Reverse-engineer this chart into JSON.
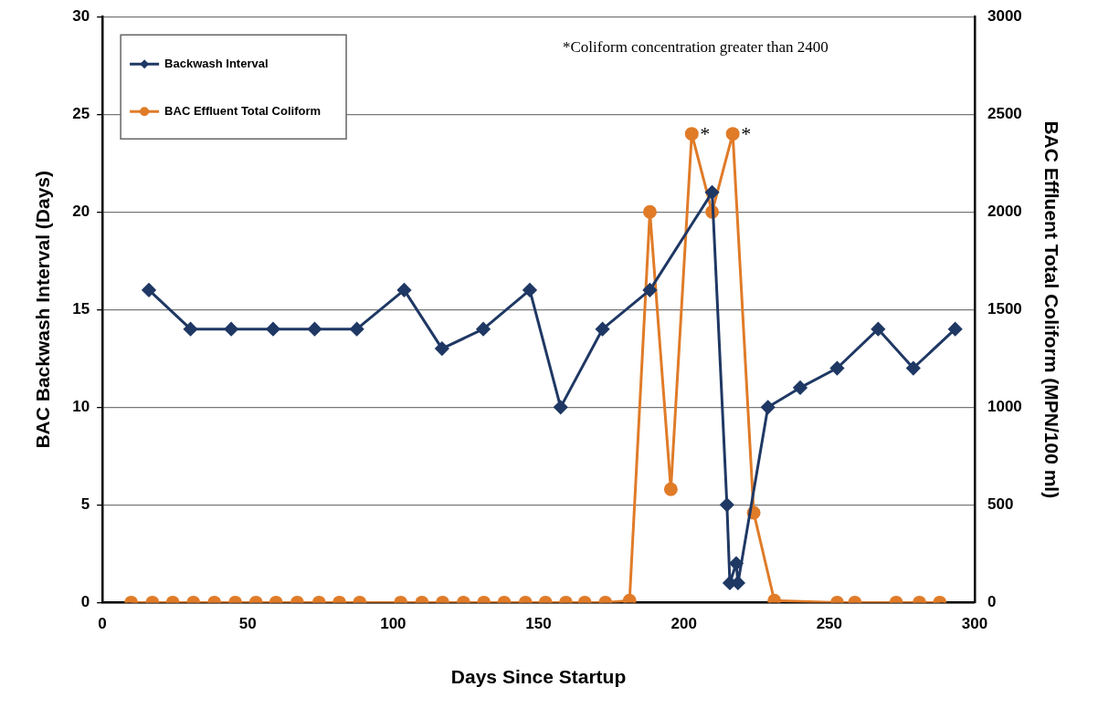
{
  "chart_data": {
    "type": "line",
    "xlabel": "Days Since Startup",
    "ylabel": "BAC Backwash Interval (Days)",
    "y2label": "BAC Effluent Total Coliform (MPN/100 ml)",
    "xlim": [
      0,
      300
    ],
    "xticks": [
      0,
      50,
      100,
      150,
      200,
      250,
      300
    ],
    "ylim": [
      0,
      30
    ],
    "yticks": [
      0,
      5,
      10,
      15,
      20,
      25,
      30
    ],
    "y2lim": [
      0,
      3000
    ],
    "y2ticks": [
      0,
      500,
      1000,
      1500,
      2000,
      2500,
      3000
    ],
    "grid": "y",
    "legend": "top left",
    "line_style": "solid",
    "annotations": [
      "*Coliform concentration greater than 2400",
      {
        "text": "*",
        "x": 202.7,
        "y": 24
      },
      {
        "text": "*",
        "x": 216.8,
        "y": 24
      }
    ],
    "series": [
      {
        "name": "Backwash Interval",
        "color": "#1f3864",
        "marker": "diamond",
        "x": [
          16,
          30.3,
          44.3,
          58.7,
          73,
          87.5,
          103.8,
          116.8,
          131,
          147,
          157.6,
          172,
          188.3,
          209.7,
          214.8,
          215.8,
          218,
          218.6,
          228.9,
          240,
          252.7,
          266.8,
          278.9,
          293.3
        ],
        "values": [
          16,
          14,
          14,
          14,
          14,
          14,
          16,
          13,
          14,
          16,
          10,
          14,
          16,
          21,
          5,
          1,
          2,
          1,
          10,
          11,
          12,
          14,
          12,
          14
        ]
      },
      {
        "name": "BAC Effluent Total Coliform",
        "color": "#e07b28",
        "marker": "circle",
        "axis": "y2",
        "x": [
          9.9,
          17.2,
          24.2,
          31.3,
          38.5,
          45.7,
          52.8,
          59.7,
          67,
          74.5,
          81.5,
          88.5,
          102.6,
          109.9,
          117,
          124.2,
          131.2,
          138.2,
          145.5,
          152.4,
          159.4,
          165.9,
          173,
          181.3,
          188.3,
          195.5,
          202.7,
          209.7,
          216.8,
          224,
          231.1,
          252.7,
          258.8,
          273,
          281,
          288
        ],
        "values": [
          0,
          0,
          0,
          0,
          0,
          0,
          0,
          0,
          0,
          0,
          0,
          0,
          0,
          0,
          0,
          0,
          0,
          0,
          0,
          0,
          0,
          0,
          0,
          10,
          2000,
          580,
          2400,
          2000,
          2400,
          460,
          10,
          0,
          0,
          0,
          0,
          0
        ]
      }
    ]
  }
}
